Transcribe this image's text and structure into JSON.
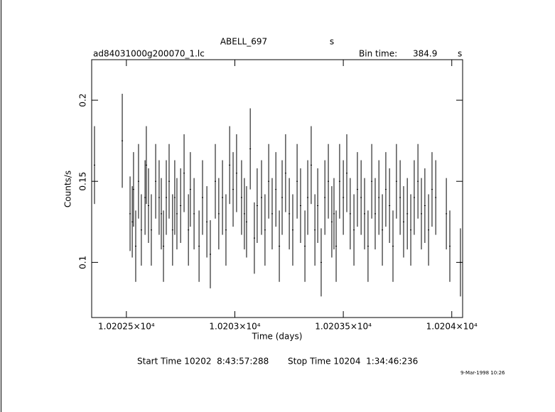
{
  "chart_data": {
    "type": "errorbar",
    "title": "ABELL_697",
    "title_unit": "s",
    "file_name": "ad84031000g200070_1.lc",
    "bin_time_label": "Bin time:",
    "bin_time": 384.9,
    "bin_time_unit": "s",
    "x_label": "Time (days)",
    "y_label": "Counts/s",
    "start_time": "Start Time 10202  8:43:57:288",
    "stop_time": "Stop Time 10204  1:34:46:236",
    "plot_date": "9-Mar-1998 10:26",
    "color": "#000000",
    "xlim": [
      10202.34,
      10204.05
    ],
    "ylim": [
      0.066,
      0.225
    ],
    "xticks": [
      {
        "value": 10202.5,
        "label": "1.02025×10⁴"
      },
      {
        "value": 10203,
        "label": "1.0203×10⁴"
      },
      {
        "value": 10203.5,
        "label": "1.02035×10⁴"
      },
      {
        "value": 10204,
        "label": "1.0204×10⁴"
      }
    ],
    "yticks": [
      0.1,
      0.15,
      0.2
    ],
    "x": [
      10202.353,
      10202.481,
      10202.517,
      10202.527,
      10202.533,
      10202.543,
      10202.556,
      10202.569,
      10202.586,
      10202.592,
      10202.602,
      10202.615,
      10202.635,
      10202.651,
      10202.661,
      10202.671,
      10202.684,
      10202.697,
      10202.713,
      10202.723,
      10202.733,
      10202.75,
      10202.766,
      10202.786,
      10202.795,
      10202.812,
      10202.835,
      10202.851,
      10202.871,
      10202.887,
      10202.91,
      10202.926,
      10202.943,
      10202.959,
      10202.976,
      10202.992,
      10203.008,
      10203.031,
      10203.044,
      10203.054,
      10203.071,
      10203.09,
      10203.103,
      10203.123,
      10203.139,
      10203.156,
      10203.172,
      10203.189,
      10203.205,
      10203.218,
      10203.234,
      10203.251,
      10203.267,
      10203.287,
      10203.303,
      10203.323,
      10203.336,
      10203.352,
      10203.369,
      10203.382,
      10203.398,
      10203.415,
      10203.431,
      10203.447,
      10203.457,
      10203.467,
      10203.483,
      10203.5,
      10203.516,
      10203.532,
      10203.549,
      10203.565,
      10203.582,
      10203.598,
      10203.614,
      10203.631,
      10203.647,
      10203.664,
      10203.68,
      10203.696,
      10203.713,
      10203.729,
      10203.745,
      10203.762,
      10203.778,
      10203.795,
      10203.811,
      10203.827,
      10203.844,
      10203.86,
      10203.876,
      10203.893,
      10203.909,
      10203.926,
      10203.975,
      10203.991,
      10204.04
    ],
    "values": [
      0.16,
      0.175,
      0.13,
      0.125,
      0.145,
      0.11,
      0.15,
      0.12,
      0.14,
      0.16,
      0.135,
      0.12,
      0.15,
      0.14,
      0.13,
      0.11,
      0.14,
      0.15,
      0.12,
      0.14,
      0.13,
      0.135,
      0.155,
      0.12,
      0.145,
      0.13,
      0.11,
      0.14,
      0.125,
      0.105,
      0.15,
      0.13,
      0.14,
      0.12,
      0.16,
      0.145,
      0.155,
      0.14,
      0.13,
      0.125,
      0.17,
      0.115,
      0.135,
      0.14,
      0.12,
      0.15,
      0.13,
      0.145,
      0.11,
      0.14,
      0.155,
      0.13,
      0.12,
      0.15,
      0.135,
      0.11,
      0.14,
      0.16,
      0.12,
      0.135,
      0.1,
      0.14,
      0.15,
      0.125,
      0.13,
      0.11,
      0.15,
      0.14,
      0.155,
      0.13,
      0.12,
      0.145,
      0.14,
      0.13,
      0.11,
      0.15,
      0.13,
      0.14,
      0.12,
      0.145,
      0.135,
      0.11,
      0.15,
      0.14,
      0.125,
      0.13,
      0.12,
      0.14,
      0.15,
      0.13,
      0.135,
      0.12,
      0.145,
      0.14,
      0.13,
      0.11,
      0.1
    ],
    "errors": [
      0.024,
      0.029,
      0.023,
      0.022,
      0.023,
      0.022,
      0.023,
      0.022,
      0.023,
      0.024,
      0.023,
      0.022,
      0.023,
      0.023,
      0.022,
      0.022,
      0.023,
      0.023,
      0.022,
      0.023,
      0.022,
      0.023,
      0.024,
      0.022,
      0.023,
      0.022,
      0.022,
      0.023,
      0.022,
      0.021,
      0.023,
      0.022,
      0.023,
      0.022,
      0.024,
      0.023,
      0.024,
      0.023,
      0.022,
      0.022,
      0.025,
      0.022,
      0.023,
      0.023,
      0.022,
      0.023,
      0.022,
      0.023,
      0.022,
      0.023,
      0.024,
      0.022,
      0.022,
      0.023,
      0.023,
      0.022,
      0.023,
      0.024,
      0.022,
      0.023,
      0.021,
      0.023,
      0.023,
      0.022,
      0.022,
      0.022,
      0.023,
      0.023,
      0.024,
      0.022,
      0.022,
      0.023,
      0.023,
      0.022,
      0.022,
      0.023,
      0.022,
      0.023,
      0.022,
      0.023,
      0.023,
      0.022,
      0.023,
      0.023,
      0.022,
      0.022,
      0.022,
      0.023,
      0.023,
      0.022,
      0.023,
      0.022,
      0.023,
      0.023,
      0.022,
      0.022,
      0.021
    ]
  }
}
